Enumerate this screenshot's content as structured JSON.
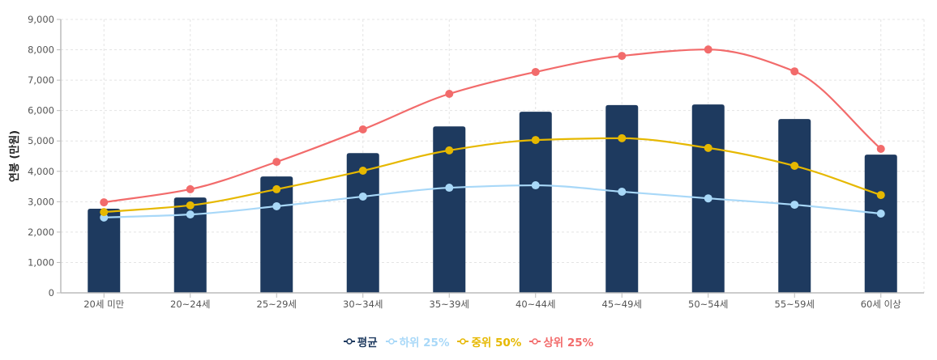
{
  "chart_data": {
    "type": "bar",
    "title": "",
    "xlabel": "",
    "ylabel": "연봉 (만원)",
    "ylim": [
      0,
      9000
    ],
    "yticks": [
      "0",
      "1,000",
      "2,000",
      "3,000",
      "4,000",
      "5,000",
      "6,000",
      "7,000",
      "8,000",
      "9,000"
    ],
    "grid": true,
    "legend_position": "bottom-center",
    "categories": [
      "20세 미만",
      "20~24세",
      "25~29세",
      "30~34세",
      "35~39세",
      "40~44세",
      "45~49세",
      "50~54세",
      "55~59세",
      "60세 이상"
    ],
    "series": [
      {
        "name": "평균",
        "type": "bar",
        "color": "#1e3a5f",
        "values": [
          2770,
          3140,
          3830,
          4600,
          5480,
          5960,
          6180,
          6200,
          5720,
          4550
        ]
      },
      {
        "name": "하위 25%",
        "type": "line",
        "color": "#a8d8f8",
        "values": [
          2480,
          2580,
          2850,
          3170,
          3460,
          3540,
          3330,
          3110,
          2900,
          2610
        ]
      },
      {
        "name": "중위 50%",
        "type": "line",
        "color": "#e6b800",
        "values": [
          2660,
          2880,
          3410,
          4020,
          4690,
          5030,
          5090,
          4770,
          4180,
          3220
        ]
      },
      {
        "name": "상위 25%",
        "type": "line",
        "color": "#f26b6b",
        "values": [
          2980,
          3410,
          4310,
          5380,
          6550,
          7270,
          7800,
          8010,
          7290,
          4740
        ]
      }
    ]
  }
}
